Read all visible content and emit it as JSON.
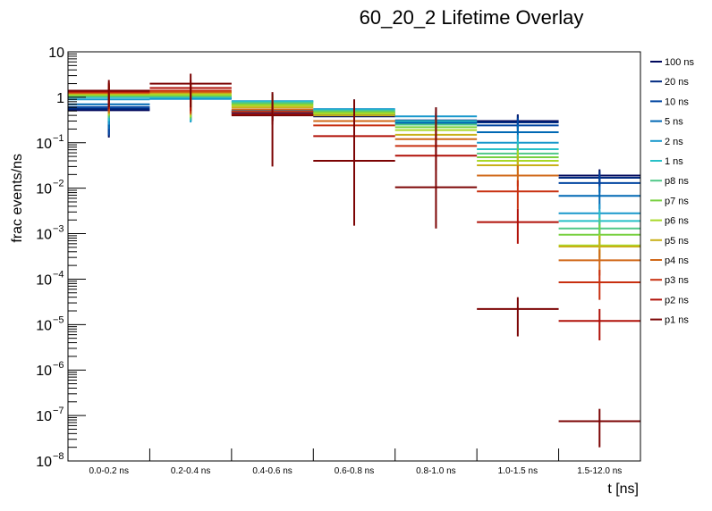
{
  "chart_data": {
    "type": "line",
    "subtype": "histogram-errorbar-overlay",
    "title": "60_20_2 Lifetime Overlay",
    "xlabel": "t [ns]",
    "ylabel": "frac events/ns",
    "yscale": "log",
    "ylim": [
      1e-08,
      10
    ],
    "y_tick_labels": [
      {
        "base": "10",
        "exp": "",
        "value": 10
      },
      {
        "base": "1",
        "exp": "",
        "value": 1
      },
      {
        "base": "10",
        "exp": "−1",
        "value": 0.1
      },
      {
        "base": "10",
        "exp": "−2",
        "value": 0.01
      },
      {
        "base": "10",
        "exp": "−3",
        "value": 0.001
      },
      {
        "base": "10",
        "exp": "−4",
        "value": 0.0001
      },
      {
        "base": "10",
        "exp": "−5",
        "value": 1e-05
      },
      {
        "base": "10",
        "exp": "−6",
        "value": 1e-06
      },
      {
        "base": "10",
        "exp": "−7",
        "value": 1e-07
      },
      {
        "base": "10",
        "exp": "−8",
        "value": 1e-08
      }
    ],
    "categories": [
      "0.0-0.2 ns",
      "0.2-0.4 ns",
      "0.4-0.6 ns",
      "0.6-0.8 ns",
      "0.8-1.0 ns",
      "1.0-1.5 ns",
      "1.5-12.0 ns"
    ],
    "grid": false,
    "legend_position": "right",
    "series": [
      {
        "name": "100 ns",
        "color": "#00085c",
        "values": [
          0.52,
          0.95,
          0.45,
          0.38,
          0.3,
          0.3,
          0.019
        ],
        "err_lo": [
          0.13,
          0.3,
          0.3,
          0.25,
          0.22,
          0.22,
          0.012
        ],
        "err_hi": [
          1.2,
          1.6,
          0.7,
          0.55,
          0.45,
          0.42,
          0.026
        ]
      },
      {
        "name": "20 ns",
        "color": "#002a80",
        "values": [
          0.56,
          0.96,
          0.47,
          0.4,
          0.31,
          0.28,
          0.017
        ],
        "err_lo": [
          0.14,
          0.3,
          0.3,
          0.25,
          0.22,
          0.2,
          0.011
        ],
        "err_hi": [
          1.2,
          1.6,
          0.7,
          0.56,
          0.45,
          0.4,
          0.024
        ]
      },
      {
        "name": "10 ns",
        "color": "#0044a0",
        "values": [
          0.61,
          0.97,
          0.49,
          0.42,
          0.29,
          0.24,
          0.013
        ],
        "err_lo": [
          0.15,
          0.3,
          0.3,
          0.26,
          0.2,
          0.17,
          0.008
        ],
        "err_hi": [
          1.25,
          1.6,
          0.75,
          0.6,
          0.42,
          0.35,
          0.02
        ]
      },
      {
        "name": "5 ns",
        "color": "#0068b4",
        "values": [
          0.7,
          0.98,
          0.51,
          0.46,
          0.27,
          0.17,
          0.0068
        ],
        "err_lo": [
          0.2,
          0.3,
          0.32,
          0.3,
          0.19,
          0.12,
          0.0035
        ],
        "err_hi": [
          1.3,
          1.65,
          0.78,
          0.66,
          0.4,
          0.25,
          0.011
        ]
      },
      {
        "name": "2 ns",
        "color": "#1898cc",
        "values": [
          0.9,
          0.92,
          0.82,
          0.55,
          0.38,
          0.1,
          0.0028
        ],
        "err_lo": [
          0.25,
          0.28,
          0.5,
          0.35,
          0.25,
          0.065,
          0.0015
        ],
        "err_hi": [
          1.5,
          1.6,
          1.2,
          0.9,
          0.6,
          0.15,
          0.0045
        ]
      },
      {
        "name": "1 ns",
        "color": "#28c0c8",
        "values": [
          1.0,
          1.0,
          0.8,
          0.52,
          0.3,
          0.072,
          0.0019
        ],
        "err_lo": [
          0.3,
          0.3,
          0.5,
          0.33,
          0.2,
          0.045,
          0.001
        ],
        "err_hi": [
          1.6,
          1.7,
          1.2,
          0.85,
          0.5,
          0.11,
          0.0032
        ]
      },
      {
        "name": "p8 ns",
        "color": "#50c888",
        "values": [
          1.05,
          1.05,
          0.75,
          0.5,
          0.25,
          0.058,
          0.0013
        ],
        "err_lo": [
          0.35,
          0.32,
          0.48,
          0.32,
          0.17,
          0.035,
          0.0007
        ],
        "err_hi": [
          1.65,
          1.75,
          1.15,
          0.8,
          0.4,
          0.09,
          0.0022
        ]
      },
      {
        "name": "p7 ns",
        "color": "#78d040",
        "values": [
          1.1,
          1.1,
          0.7,
          0.47,
          0.22,
          0.048,
          0.00095
        ],
        "err_lo": [
          0.38,
          0.35,
          0.45,
          0.3,
          0.15,
          0.03,
          0.0005
        ],
        "err_hi": [
          1.7,
          1.8,
          1.1,
          0.75,
          0.35,
          0.075,
          0.0016
        ]
      },
      {
        "name": "p6 ns",
        "color": "#a8d828",
        "values": [
          1.15,
          1.15,
          0.66,
          0.44,
          0.19,
          0.04,
          0.00055
        ],
        "err_lo": [
          0.4,
          0.37,
          0.42,
          0.28,
          0.13,
          0.025,
          0.0003
        ],
        "err_hi": [
          1.8,
          1.85,
          1.05,
          0.7,
          0.3,
          0.065,
          0.00095
        ]
      },
      {
        "name": "p5 ns",
        "color": "#c8b018",
        "values": [
          1.2,
          1.25,
          0.6,
          0.4,
          0.15,
          0.032,
          0.00052
        ],
        "err_lo": [
          0.42,
          0.4,
          0.38,
          0.25,
          0.1,
          0.02,
          0.00028
        ],
        "err_hi": [
          1.85,
          1.95,
          0.95,
          0.65,
          0.24,
          0.052,
          0.0009
        ]
      },
      {
        "name": "p4 ns",
        "color": "#d06818",
        "values": [
          1.25,
          1.3,
          0.54,
          0.3,
          0.12,
          0.019,
          0.00026
        ],
        "err_lo": [
          0.45,
          0.42,
          0.35,
          0.18,
          0.075,
          0.011,
          0.00012
        ],
        "err_hi": [
          1.9,
          2.0,
          0.85,
          0.5,
          0.2,
          0.032,
          0.00045
        ]
      },
      {
        "name": "p3 ns",
        "color": "#c83010",
        "values": [
          1.3,
          1.4,
          0.48,
          0.24,
          0.085,
          0.0085,
          8.5e-05
        ],
        "err_lo": [
          0.5,
          0.45,
          0.3,
          0.14,
          0.05,
          0.0035,
          3.5e-05
        ],
        "err_hi": [
          2.0,
          2.1,
          0.8,
          0.4,
          0.15,
          0.015,
          0.00016
        ]
      },
      {
        "name": "p2 ns",
        "color": "#b01008",
        "values": [
          1.35,
          1.6,
          0.42,
          0.14,
          0.052,
          0.0018,
          1.2e-05
        ],
        "err_lo": [
          0.55,
          0.5,
          0.25,
          0.075,
          0.025,
          0.0006,
          4.5e-06
        ],
        "err_hi": [
          2.1,
          2.4,
          0.75,
          0.25,
          0.1,
          0.0035,
          2.2e-05
        ]
      },
      {
        "name": "p1 ns",
        "color": "#7c0404",
        "values": [
          1.4,
          2.0,
          0.4,
          0.04,
          0.0105,
          2.2e-05,
          7.5e-08
        ],
        "err_lo": [
          0.6,
          0.6,
          0.03,
          0.0015,
          0.0013,
          5.5e-06,
          2e-08
        ],
        "err_hi": [
          2.4,
          3.3,
          1.3,
          0.9,
          0.6,
          4e-05,
          1.4e-07
        ]
      }
    ]
  }
}
